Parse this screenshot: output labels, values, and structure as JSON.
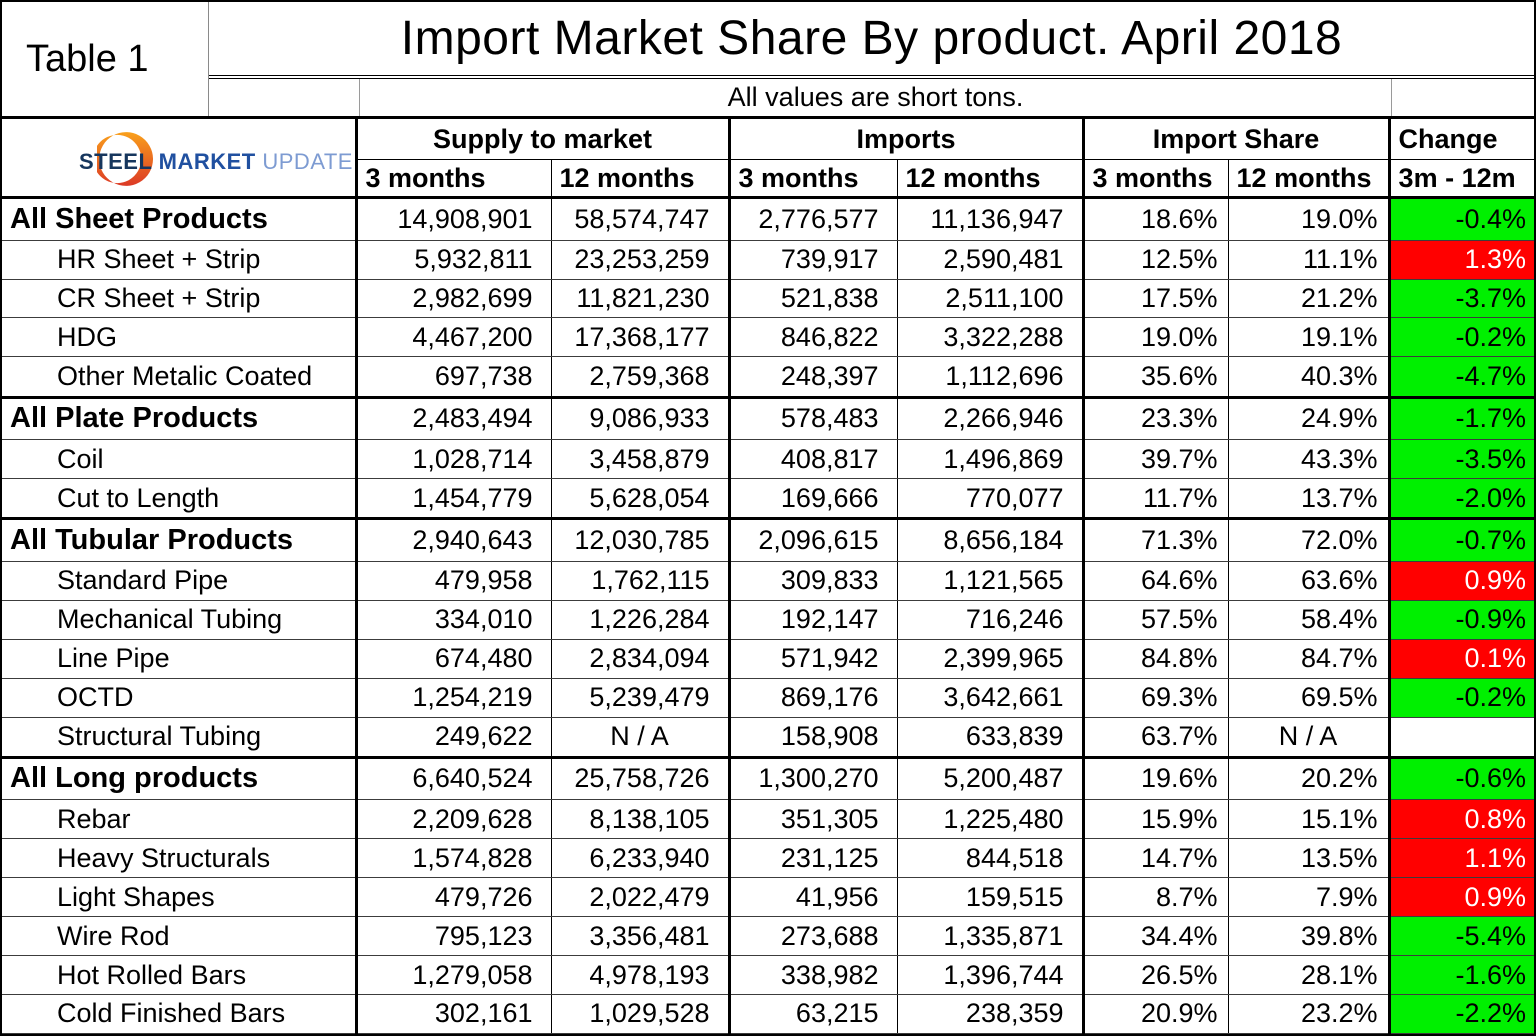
{
  "table_label": "Table 1",
  "logo": {
    "steel": "STEEL",
    "market": "MARKET",
    "update": "UPDATE"
  },
  "colors": {
    "decrease_bg": "#00f000",
    "increase_bg": "#ff0000",
    "increase_text": "#ffffff",
    "logo_orange_top": "#f9a01b",
    "logo_orange_bottom": "#dc3a26"
  },
  "chart_data": {
    "type": "table",
    "title": "Import Market Share By product. April 2018",
    "subtitle": "All values are short tons.",
    "column_groups": [
      "Supply to market",
      "Imports",
      "Import Share",
      "Change"
    ],
    "sub_headers": [
      "3 months",
      "12 months",
      "3 months",
      "12 months",
      "3 months",
      "12 months",
      "3m - 12m"
    ],
    "rows": [
      {
        "product": "All Sheet Products",
        "level": "section",
        "supply_3m": "14,908,901",
        "supply_12m": "58,574,747",
        "imports_3m": "2,776,577",
        "imports_12m": "11,136,947",
        "share_3m": "18.6%",
        "share_12m": "19.0%",
        "change": "-0.4%",
        "change_color": "green"
      },
      {
        "product": "HR Sheet + Strip",
        "level": "item",
        "supply_3m": "5,932,811",
        "supply_12m": "23,253,259",
        "imports_3m": "739,917",
        "imports_12m": "2,590,481",
        "share_3m": "12.5%",
        "share_12m": "11.1%",
        "change": "1.3%",
        "change_color": "red"
      },
      {
        "product": "CR Sheet + Strip",
        "level": "item",
        "supply_3m": "2,982,699",
        "supply_12m": "11,821,230",
        "imports_3m": "521,838",
        "imports_12m": "2,511,100",
        "share_3m": "17.5%",
        "share_12m": "21.2%",
        "change": "-3.7%",
        "change_color": "green"
      },
      {
        "product": "HDG",
        "level": "item",
        "supply_3m": "4,467,200",
        "supply_12m": "17,368,177",
        "imports_3m": "846,822",
        "imports_12m": "3,322,288",
        "share_3m": "19.0%",
        "share_12m": "19.1%",
        "change": "-0.2%",
        "change_color": "green"
      },
      {
        "product": "Other Metalic Coated",
        "level": "item",
        "supply_3m": "697,738",
        "supply_12m": "2,759,368",
        "imports_3m": "248,397",
        "imports_12m": "1,112,696",
        "share_3m": "35.6%",
        "share_12m": "40.3%",
        "change": "-4.7%",
        "change_color": "green"
      },
      {
        "product": "All Plate Products",
        "level": "section",
        "supply_3m": "2,483,494",
        "supply_12m": "9,086,933",
        "imports_3m": "578,483",
        "imports_12m": "2,266,946",
        "share_3m": "23.3%",
        "share_12m": "24.9%",
        "change": "-1.7%",
        "change_color": "green"
      },
      {
        "product": "Coil",
        "level": "item",
        "supply_3m": "1,028,714",
        "supply_12m": "3,458,879",
        "imports_3m": "408,817",
        "imports_12m": "1,496,869",
        "share_3m": "39.7%",
        "share_12m": "43.3%",
        "change": "-3.5%",
        "change_color": "green"
      },
      {
        "product": "Cut to Length",
        "level": "item",
        "supply_3m": "1,454,779",
        "supply_12m": "5,628,054",
        "imports_3m": "169,666",
        "imports_12m": "770,077",
        "share_3m": "11.7%",
        "share_12m": "13.7%",
        "change": "-2.0%",
        "change_color": "green"
      },
      {
        "product": "All Tubular Products",
        "level": "section",
        "supply_3m": "2,940,643",
        "supply_12m": "12,030,785",
        "imports_3m": "2,096,615",
        "imports_12m": "8,656,184",
        "share_3m": "71.3%",
        "share_12m": "72.0%",
        "change": "-0.7%",
        "change_color": "green"
      },
      {
        "product": "Standard Pipe",
        "level": "item",
        "supply_3m": "479,958",
        "supply_12m": "1,762,115",
        "imports_3m": "309,833",
        "imports_12m": "1,121,565",
        "share_3m": "64.6%",
        "share_12m": "63.6%",
        "change": "0.9%",
        "change_color": "red"
      },
      {
        "product": "Mechanical Tubing",
        "level": "item",
        "supply_3m": "334,010",
        "supply_12m": "1,226,284",
        "imports_3m": "192,147",
        "imports_12m": "716,246",
        "share_3m": "57.5%",
        "share_12m": "58.4%",
        "change": "-0.9%",
        "change_color": "green"
      },
      {
        "product": "Line Pipe",
        "level": "item",
        "supply_3m": "674,480",
        "supply_12m": "2,834,094",
        "imports_3m": "571,942",
        "imports_12m": "2,399,965",
        "share_3m": "84.8%",
        "share_12m": "84.7%",
        "change": "0.1%",
        "change_color": "red"
      },
      {
        "product": "OCTD",
        "level": "item",
        "supply_3m": "1,254,219",
        "supply_12m": "5,239,479",
        "imports_3m": "869,176",
        "imports_12m": "3,642,661",
        "share_3m": "69.3%",
        "share_12m": "69.5%",
        "change": "-0.2%",
        "change_color": "green"
      },
      {
        "product": "Structural Tubing",
        "level": "item",
        "supply_3m": "249,622",
        "supply_12m": "N / A",
        "imports_3m": "158,908",
        "imports_12m": "633,839",
        "share_3m": "63.7%",
        "share_12m": "N / A",
        "change": "",
        "change_color": "none"
      },
      {
        "product": "All Long products",
        "level": "section",
        "supply_3m": "6,640,524",
        "supply_12m": "25,758,726",
        "imports_3m": "1,300,270",
        "imports_12m": "5,200,487",
        "share_3m": "19.6%",
        "share_12m": "20.2%",
        "change": "-0.6%",
        "change_color": "green"
      },
      {
        "product": "Rebar",
        "level": "item",
        "supply_3m": "2,209,628",
        "supply_12m": "8,138,105",
        "imports_3m": "351,305",
        "imports_12m": "1,225,480",
        "share_3m": "15.9%",
        "share_12m": "15.1%",
        "change": "0.8%",
        "change_color": "red"
      },
      {
        "product": "Heavy Structurals",
        "level": "item",
        "supply_3m": "1,574,828",
        "supply_12m": "6,233,940",
        "imports_3m": "231,125",
        "imports_12m": "844,518",
        "share_3m": "14.7%",
        "share_12m": "13.5%",
        "change": "1.1%",
        "change_color": "red"
      },
      {
        "product": "Light Shapes",
        "level": "item",
        "supply_3m": "479,726",
        "supply_12m": "2,022,479",
        "imports_3m": "41,956",
        "imports_12m": "159,515",
        "share_3m": "8.7%",
        "share_12m": "7.9%",
        "change": "0.9%",
        "change_color": "red"
      },
      {
        "product": "Wire Rod",
        "level": "item",
        "supply_3m": "795,123",
        "supply_12m": "3,356,481",
        "imports_3m": "273,688",
        "imports_12m": "1,335,871",
        "share_3m": "34.4%",
        "share_12m": "39.8%",
        "change": "-5.4%",
        "change_color": "green"
      },
      {
        "product": "Hot Rolled Bars",
        "level": "item",
        "supply_3m": "1,279,058",
        "supply_12m": "4,978,193",
        "imports_3m": "338,982",
        "imports_12m": "1,396,744",
        "share_3m": "26.5%",
        "share_12m": "28.1%",
        "change": "-1.6%",
        "change_color": "green"
      },
      {
        "product": "Cold Finished Bars",
        "level": "item",
        "supply_3m": "302,161",
        "supply_12m": "1,029,528",
        "imports_3m": "63,215",
        "imports_12m": "238,359",
        "share_3m": "20.9%",
        "share_12m": "23.2%",
        "change": "-2.2%",
        "change_color": "green"
      }
    ]
  }
}
